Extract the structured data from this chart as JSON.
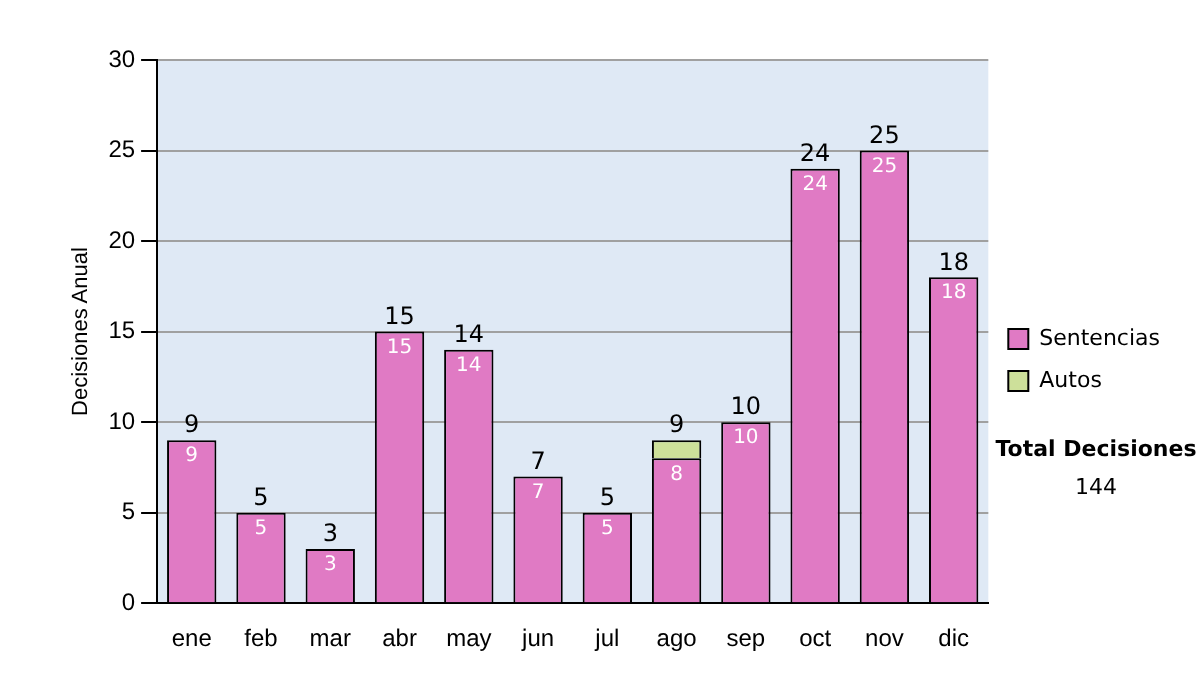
{
  "chart_data": {
    "type": "bar",
    "stacked": true,
    "ylabel": "Decisiones Anual",
    "categories": [
      "ene",
      "feb",
      "mar",
      "abr",
      "may",
      "jun",
      "jul",
      "ago",
      "sep",
      "oct",
      "nov",
      "dic"
    ],
    "series": [
      {
        "name": "Sentencias",
        "color": "#e07ac4",
        "values": [
          9,
          5,
          3,
          15,
          14,
          7,
          5,
          8,
          10,
          24,
          25,
          18
        ],
        "value_labels": [
          "9",
          "5",
          "3",
          "15",
          "14",
          "7",
          "5",
          "8",
          "10",
          "24",
          "25",
          "18"
        ]
      },
      {
        "name": "Autos",
        "color": "#cde09a",
        "values": [
          0,
          0,
          0,
          0,
          0,
          0,
          0,
          1,
          0,
          0,
          0,
          0
        ],
        "value_labels": [
          null,
          null,
          null,
          null,
          null,
          null,
          null,
          null,
          null,
          null,
          null,
          null
        ]
      }
    ],
    "totals": [
      "9",
      "5",
      "3",
      "15",
      "14",
      "7",
      "5",
      "9",
      "10",
      "24",
      "25",
      "18"
    ],
    "ylim": [
      0,
      30
    ],
    "yticks": [
      0,
      5,
      10,
      15,
      20,
      25,
      30
    ],
    "grid": "y",
    "legend": "right",
    "annotations": [
      "Total Decisiones",
      "144"
    ]
  }
}
